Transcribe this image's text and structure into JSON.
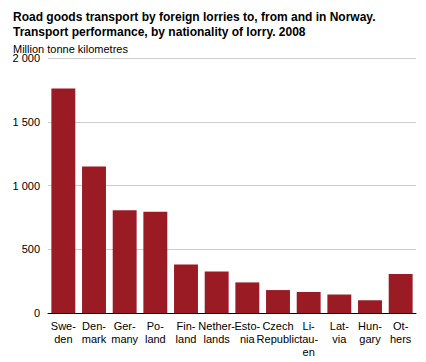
{
  "chart_data": {
    "type": "bar",
    "title": "Road goods transport by foreign lorries to, from and in Norway.\nTransport performance, by nationality of lorry. 2008",
    "y_label": "Million tonne kilometres",
    "categories": [
      "Swe-\nden",
      "Den-\nmark",
      "Ger-\nmany",
      "Po-\nland",
      "Fin-\nland",
      "Nether-\nlands",
      "Esto-\nnia",
      "Czech\nRepublic",
      "Li-\ntau-\nen",
      "Lat-\nvia",
      "Hun-\ngary",
      "Ot-\nhers"
    ],
    "values": [
      1760,
      1150,
      805,
      795,
      380,
      325,
      240,
      180,
      165,
      145,
      100,
      305
    ],
    "color": "#9b1b24",
    "ylim": [
      0,
      2000
    ],
    "yticks": [
      0,
      500,
      {
        "value": 1000,
        "label": "1 000"
      },
      {
        "value": 1500,
        "label": "1 500"
      },
      {
        "value": 2000,
        "label": "2 000"
      }
    ],
    "grid": true
  }
}
